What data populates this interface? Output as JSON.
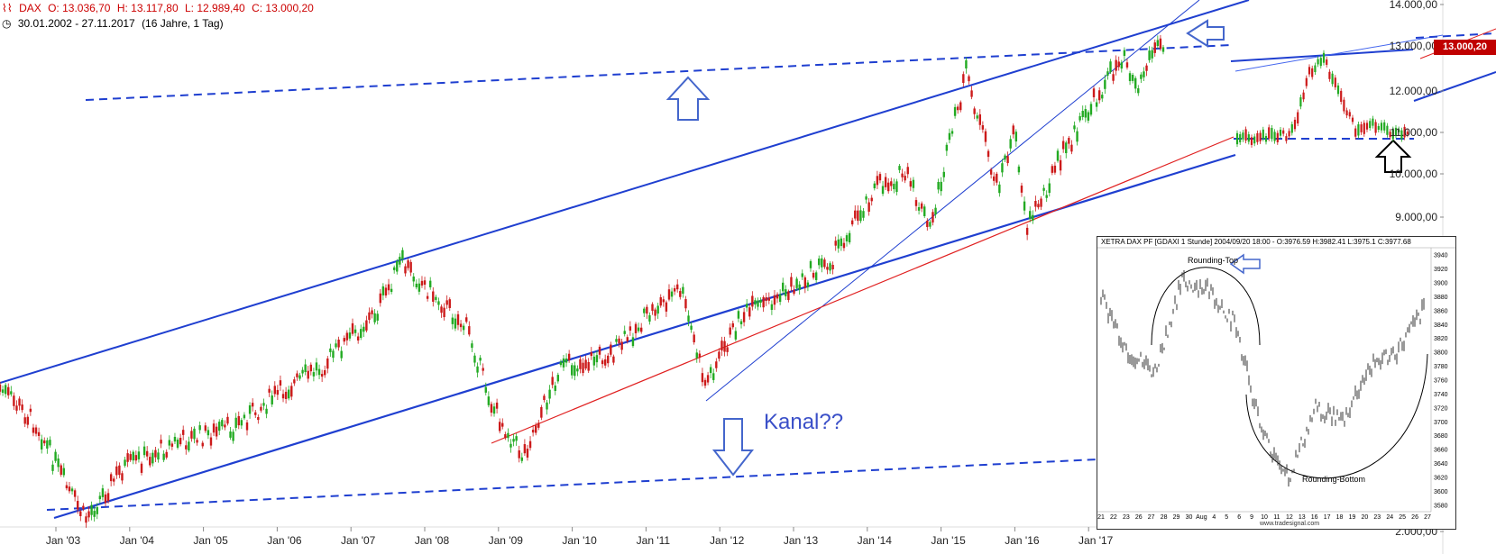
{
  "header": {
    "symbol": "DAX",
    "open": "O: 13.036,70",
    "high": "H: 13.117,80",
    "low": "L: 12.989,40",
    "close": "C: 13.000,20",
    "date_range": "30.01.2002 - 27.11.2017",
    "period": "(16 Jahre, 1 Tag)"
  },
  "price_badge": "13.000,20",
  "annotation": "Kanal??",
  "colors": {
    "channel": "#1f3fd0",
    "support_red": "#e02020",
    "candle_up": "#22aa22",
    "candle_down": "#cc1a1a",
    "arrow": "#4466cc"
  },
  "chart_data": [
    {
      "type": "line",
      "title": "",
      "xlabel": "",
      "ylabel": "",
      "x_ticks": [
        "Jan '03",
        "Jan '04",
        "Jan '05",
        "Jan '06",
        "Jan '07",
        "Jan '08",
        "Jan '09",
        "Jan '10",
        "Jan '11",
        "Jan '12",
        "Jan '13",
        "Jan '14",
        "Jan '15",
        "Jan '16",
        "Jan '17"
      ],
      "y_ticks": [
        "14.000,00",
        "13.000,00",
        "12.000,00",
        "11.000,00",
        "10.000,00",
        "9.000,00",
        "2.000,00"
      ],
      "ylim": [
        2000,
        14000
      ],
      "series": [
        {
          "x": [
            "2002-01",
            "2002-07",
            "2002-12",
            "2003-03",
            "2003-09",
            "2004-06",
            "2005-03",
            "2005-10",
            "2006-06",
            "2007-03",
            "2007-07",
            "2008-01",
            "2008-06",
            "2008-10",
            "2009-03",
            "2009-09",
            "2010-06",
            "2011-01",
            "2011-05",
            "2011-09",
            "2012-03",
            "2012-09",
            "2013-06",
            "2014-01",
            "2014-06",
            "2014-10",
            "2015-04",
            "2015-09",
            "2015-12",
            "2016-02",
            "2016-08",
            "2017-01",
            "2017-06",
            "2017-08",
            "2017-11"
          ],
          "values": [
            5200,
            4400,
            3000,
            2300,
            3400,
            4000,
            4300,
            5000,
            5700,
            6900,
            8000,
            7200,
            6500,
            4800,
            3700,
            5600,
            6000,
            7000,
            7400,
            5300,
            6800,
            7200,
            8100,
            9700,
            10000,
            8700,
            12400,
            9700,
            11000,
            8800,
            10500,
            11700,
            12900,
            12000,
            13000
          ]
        }
      ]
    },
    {
      "type": "line",
      "title": "XETRA DAX PF [GDAXI 1 Stunde] 2004/09/20 18:00 - O:3976.59 H:3982.41 L:3975.1 C:3977.68",
      "xlabel": "",
      "ylabel": "",
      "x_ticks": [
        "21",
        "22",
        "23",
        "26",
        "27",
        "28",
        "29",
        "30",
        "Aug",
        "4",
        "5",
        "6",
        "9",
        "10",
        "11",
        "12",
        "13",
        "16",
        "17",
        "18",
        "19",
        "20",
        "23",
        "24",
        "25",
        "26",
        "27"
      ],
      "y_ticks": [
        "3940",
        "3920",
        "3900",
        "3880",
        "3860",
        "3840",
        "3820",
        "3800",
        "3780",
        "3760",
        "3740",
        "3720",
        "3700",
        "3680",
        "3660",
        "3640",
        "3620",
        "3600",
        "3580"
      ],
      "ylim": [
        3570,
        3950
      ],
      "labels": [
        "Rounding-Top",
        "Rounding-Bottom"
      ],
      "footer": "www.tradesignal.com",
      "series": [
        {
          "x": [
            "21",
            "23",
            "27",
            "29",
            "Aug",
            "5",
            "10",
            "12",
            "16",
            "18",
            "20",
            "24",
            "27"
          ],
          "values": [
            3880,
            3800,
            3770,
            3900,
            3890,
            3840,
            3680,
            3620,
            3720,
            3700,
            3780,
            3800,
            3860
          ]
        }
      ]
    }
  ]
}
